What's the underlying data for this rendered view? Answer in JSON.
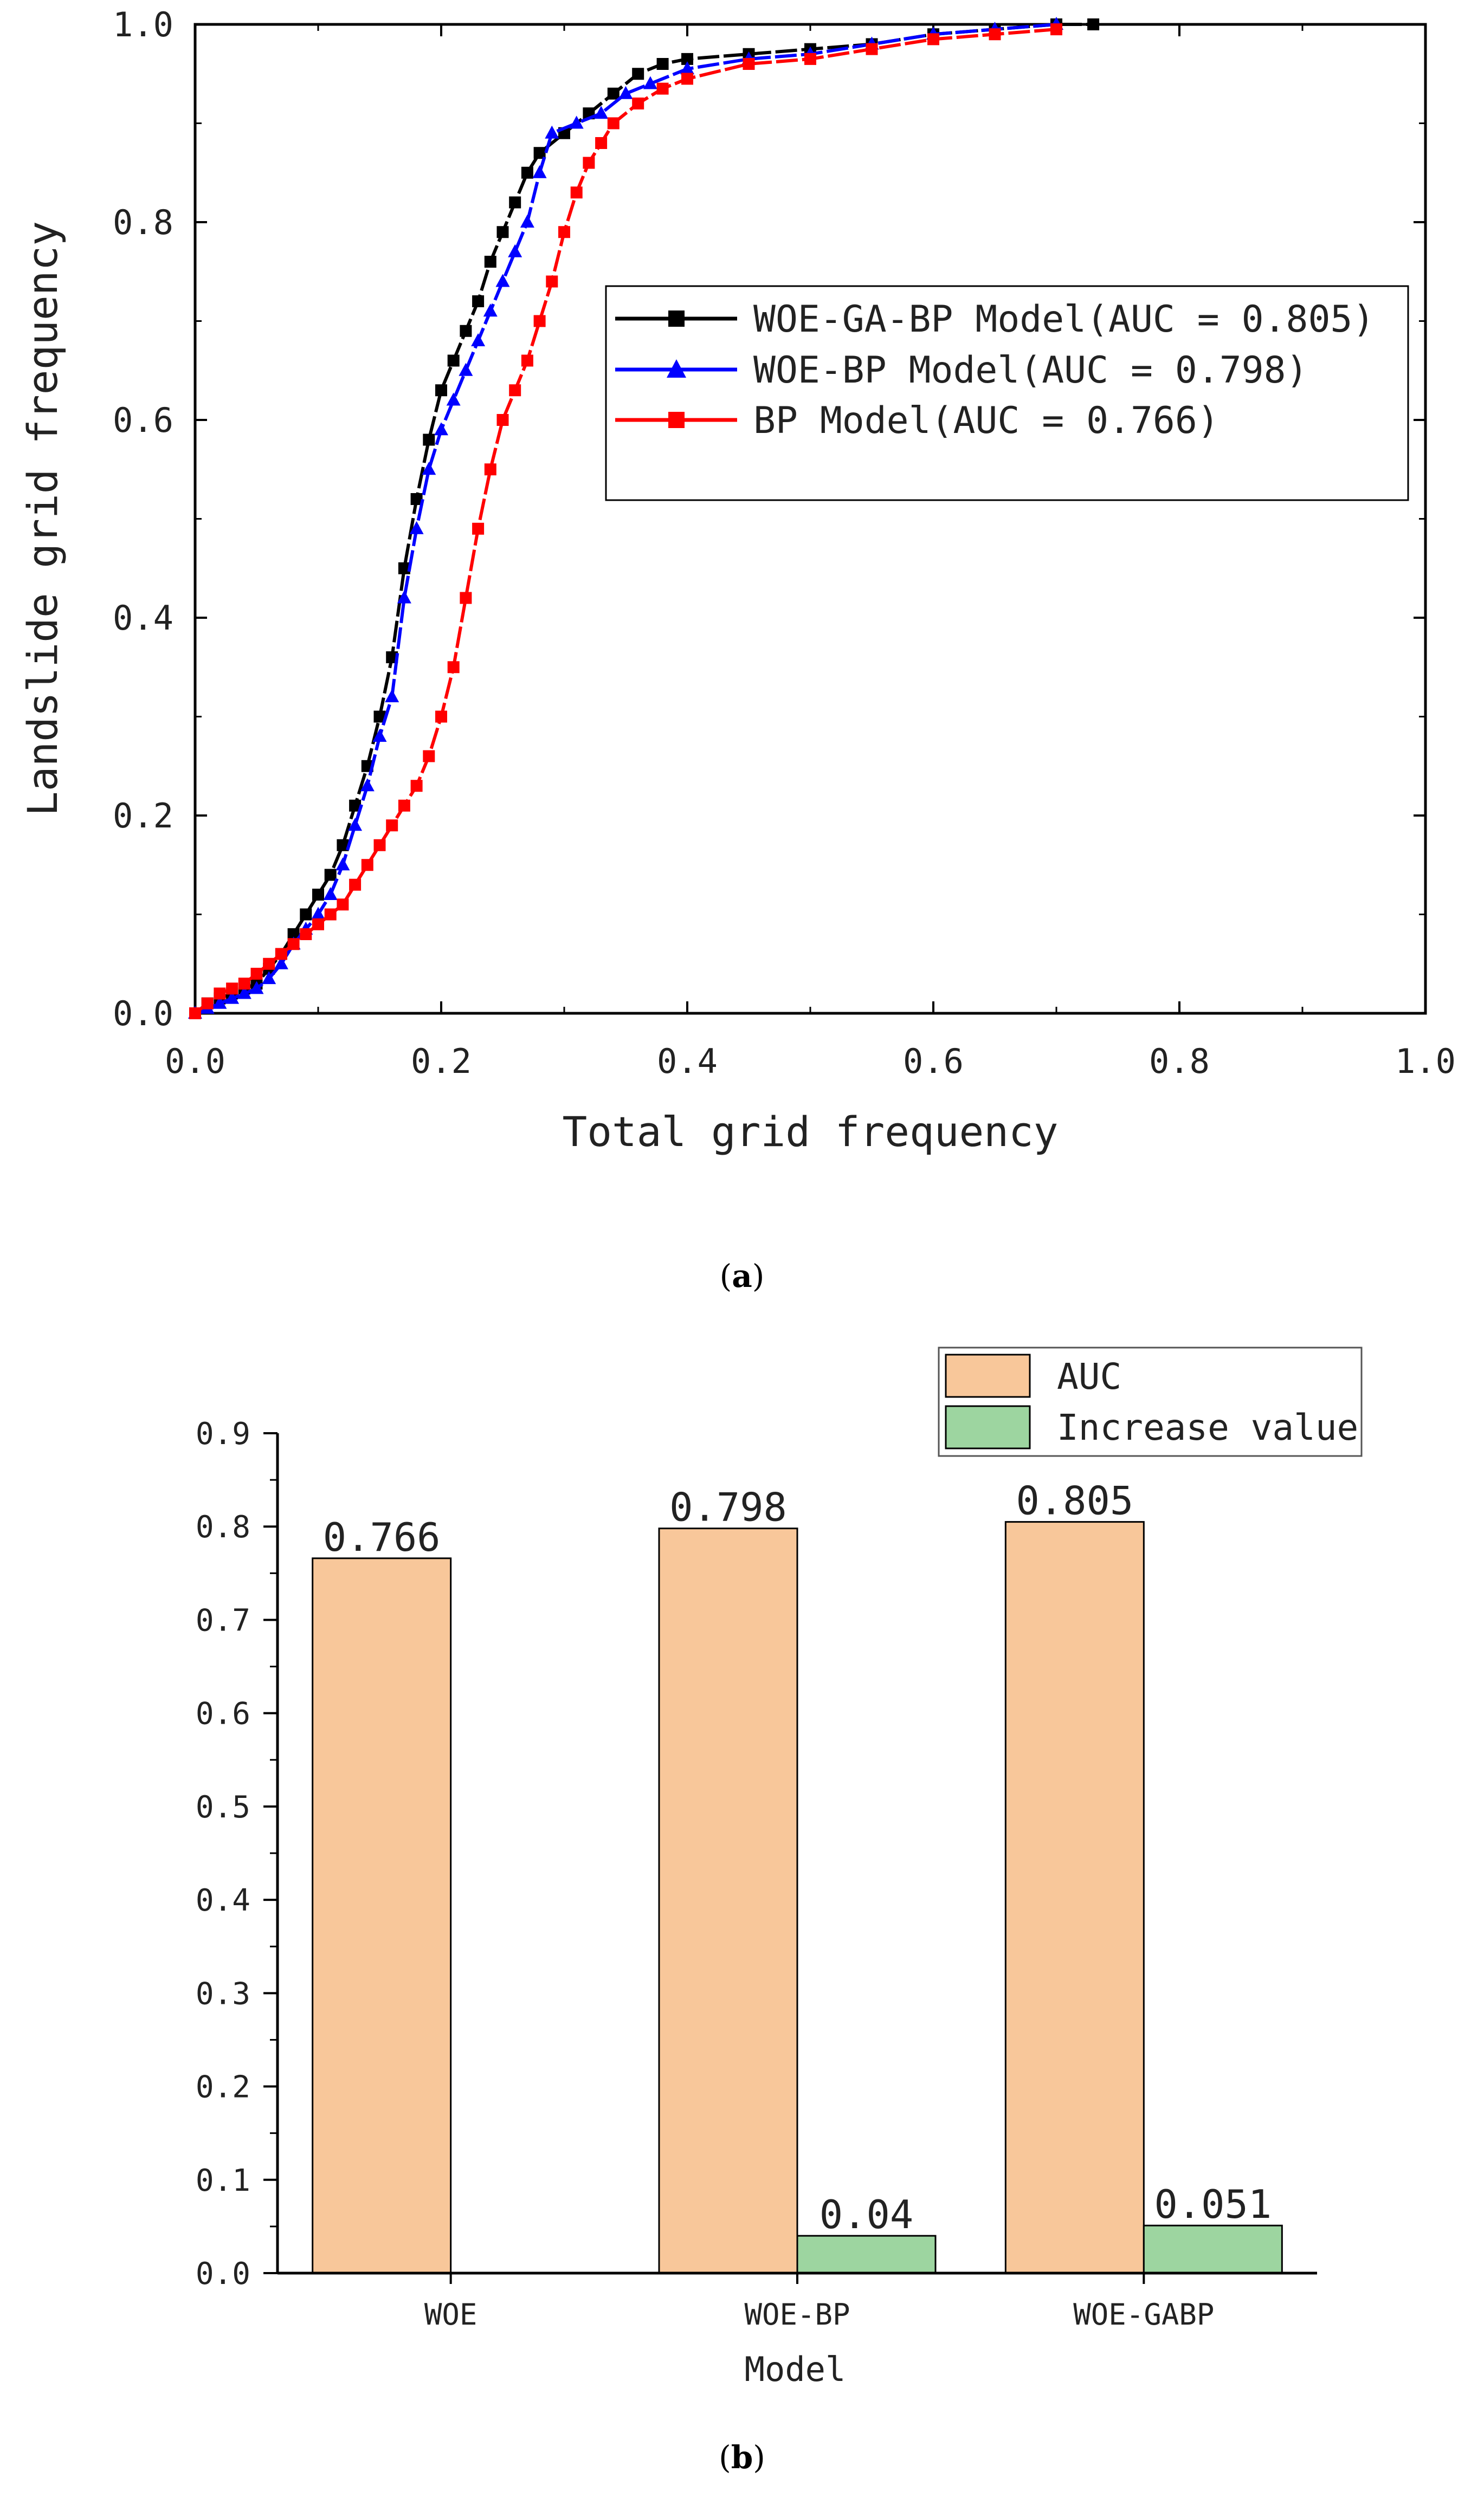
{
  "figure": {
    "caption_a_open": "(",
    "caption_a_letter": "a",
    "caption_a_close": ")",
    "caption_b_open": "(",
    "caption_b_letter": "b",
    "caption_b_close": ")"
  },
  "chart_data": [
    {
      "id": "a",
      "type": "line",
      "xlabel": "Total grid frequency",
      "ylabel": "Landslide grid frequency",
      "xlim": [
        0,
        1
      ],
      "ylim": [
        0,
        1
      ],
      "xticks": [
        "0.0",
        "0.2",
        "0.4",
        "0.6",
        "0.8",
        "1.0"
      ],
      "yticks": [
        "0.0",
        "0.2",
        "0.4",
        "0.6",
        "0.8",
        "1.0"
      ],
      "legend_position": "center-right",
      "series": [
        {
          "name": "WOE-GA-BP Model(AUC = 0.805)",
          "color": "#000000",
          "marker": "square",
          "points": [
            [
              0.0,
              0.0
            ],
            [
              0.01,
              0.01
            ],
            [
              0.02,
              0.015
            ],
            [
              0.03,
              0.02
            ],
            [
              0.04,
              0.025
            ],
            [
              0.05,
              0.03
            ],
            [
              0.06,
              0.045
            ],
            [
              0.07,
              0.06
            ],
            [
              0.08,
              0.08
            ],
            [
              0.09,
              0.1
            ],
            [
              0.1,
              0.12
            ],
            [
              0.11,
              0.14
            ],
            [
              0.12,
              0.17
            ],
            [
              0.13,
              0.21
            ],
            [
              0.14,
              0.25
            ],
            [
              0.15,
              0.3
            ],
            [
              0.16,
              0.36
            ],
            [
              0.17,
              0.45
            ],
            [
              0.18,
              0.52
            ],
            [
              0.19,
              0.58
            ],
            [
              0.2,
              0.63
            ],
            [
              0.21,
              0.66
            ],
            [
              0.22,
              0.69
            ],
            [
              0.23,
              0.72
            ],
            [
              0.24,
              0.76
            ],
            [
              0.25,
              0.79
            ],
            [
              0.26,
              0.82
            ],
            [
              0.27,
              0.85
            ],
            [
              0.28,
              0.87
            ],
            [
              0.3,
              0.89
            ],
            [
              0.32,
              0.91
            ],
            [
              0.34,
              0.93
            ],
            [
              0.36,
              0.95
            ],
            [
              0.38,
              0.96
            ],
            [
              0.4,
              0.965
            ],
            [
              0.45,
              0.97
            ],
            [
              0.5,
              0.975
            ],
            [
              0.55,
              0.98
            ],
            [
              0.6,
              0.99
            ],
            [
              0.65,
              0.995
            ],
            [
              0.7,
              1.0
            ],
            [
              0.73,
              1.0
            ]
          ]
        },
        {
          "name": "WOE-BP Model(AUC = 0.798)",
          "color": "#0000ff",
          "marker": "triangle",
          "points": [
            [
              0.0,
              0.0
            ],
            [
              0.01,
              0.005
            ],
            [
              0.02,
              0.01
            ],
            [
              0.03,
              0.015
            ],
            [
              0.04,
              0.02
            ],
            [
              0.05,
              0.025
            ],
            [
              0.06,
              0.035
            ],
            [
              0.07,
              0.05
            ],
            [
              0.08,
              0.07
            ],
            [
              0.09,
              0.085
            ],
            [
              0.1,
              0.1
            ],
            [
              0.11,
              0.12
            ],
            [
              0.12,
              0.15
            ],
            [
              0.13,
              0.19
            ],
            [
              0.14,
              0.23
            ],
            [
              0.15,
              0.28
            ],
            [
              0.16,
              0.32
            ],
            [
              0.17,
              0.42
            ],
            [
              0.18,
              0.49
            ],
            [
              0.19,
              0.55
            ],
            [
              0.2,
              0.59
            ],
            [
              0.21,
              0.62
            ],
            [
              0.22,
              0.65
            ],
            [
              0.23,
              0.68
            ],
            [
              0.24,
              0.71
            ],
            [
              0.25,
              0.74
            ],
            [
              0.26,
              0.77
            ],
            [
              0.27,
              0.8
            ],
            [
              0.28,
              0.85
            ],
            [
              0.29,
              0.89
            ],
            [
              0.31,
              0.9
            ],
            [
              0.33,
              0.91
            ],
            [
              0.35,
              0.93
            ],
            [
              0.37,
              0.94
            ],
            [
              0.4,
              0.955
            ],
            [
              0.45,
              0.965
            ],
            [
              0.5,
              0.97
            ],
            [
              0.55,
              0.98
            ],
            [
              0.6,
              0.99
            ],
            [
              0.65,
              0.995
            ],
            [
              0.7,
              1.0
            ]
          ]
        },
        {
          "name": "BP Model(AUC = 0.766)",
          "color": "#ff0000",
          "marker": "square",
          "points": [
            [
              0.0,
              0.0
            ],
            [
              0.01,
              0.01
            ],
            [
              0.02,
              0.02
            ],
            [
              0.03,
              0.025
            ],
            [
              0.04,
              0.03
            ],
            [
              0.05,
              0.04
            ],
            [
              0.06,
              0.05
            ],
            [
              0.07,
              0.06
            ],
            [
              0.08,
              0.07
            ],
            [
              0.09,
              0.08
            ],
            [
              0.1,
              0.09
            ],
            [
              0.11,
              0.1
            ],
            [
              0.12,
              0.11
            ],
            [
              0.13,
              0.13
            ],
            [
              0.14,
              0.15
            ],
            [
              0.15,
              0.17
            ],
            [
              0.16,
              0.19
            ],
            [
              0.17,
              0.21
            ],
            [
              0.18,
              0.23
            ],
            [
              0.19,
              0.26
            ],
            [
              0.2,
              0.3
            ],
            [
              0.21,
              0.35
            ],
            [
              0.22,
              0.42
            ],
            [
              0.23,
              0.49
            ],
            [
              0.24,
              0.55
            ],
            [
              0.25,
              0.6
            ],
            [
              0.26,
              0.63
            ],
            [
              0.27,
              0.66
            ],
            [
              0.28,
              0.7
            ],
            [
              0.29,
              0.74
            ],
            [
              0.3,
              0.79
            ],
            [
              0.31,
              0.83
            ],
            [
              0.32,
              0.86
            ],
            [
              0.33,
              0.88
            ],
            [
              0.34,
              0.9
            ],
            [
              0.36,
              0.92
            ],
            [
              0.38,
              0.935
            ],
            [
              0.4,
              0.945
            ],
            [
              0.45,
              0.96
            ],
            [
              0.5,
              0.965
            ],
            [
              0.55,
              0.975
            ],
            [
              0.6,
              0.985
            ],
            [
              0.65,
              0.99
            ],
            [
              0.7,
              0.995
            ]
          ]
        }
      ]
    },
    {
      "id": "b",
      "type": "bar",
      "xlabel": "Model",
      "ylabel": "",
      "ylim": [
        0,
        0.9
      ],
      "yticks": [
        "0.0",
        "0.1",
        "0.2",
        "0.3",
        "0.4",
        "0.5",
        "0.6",
        "0.7",
        "0.8",
        "0.9"
      ],
      "categories": [
        "WOE",
        "WOE-BP",
        "WOE-GABP"
      ],
      "legend_position": "top-right",
      "series": [
        {
          "name": "AUC",
          "color": "#f8c79a",
          "values": [
            0.766,
            0.798,
            0.805
          ],
          "labels": [
            "0.766",
            "0.798",
            "0.805"
          ]
        },
        {
          "name": "Increase value",
          "color": "#9dd5a0",
          "values": [
            0,
            0.04,
            0.051
          ],
          "labels": [
            "",
            "0.04",
            "0.051"
          ]
        }
      ]
    }
  ]
}
